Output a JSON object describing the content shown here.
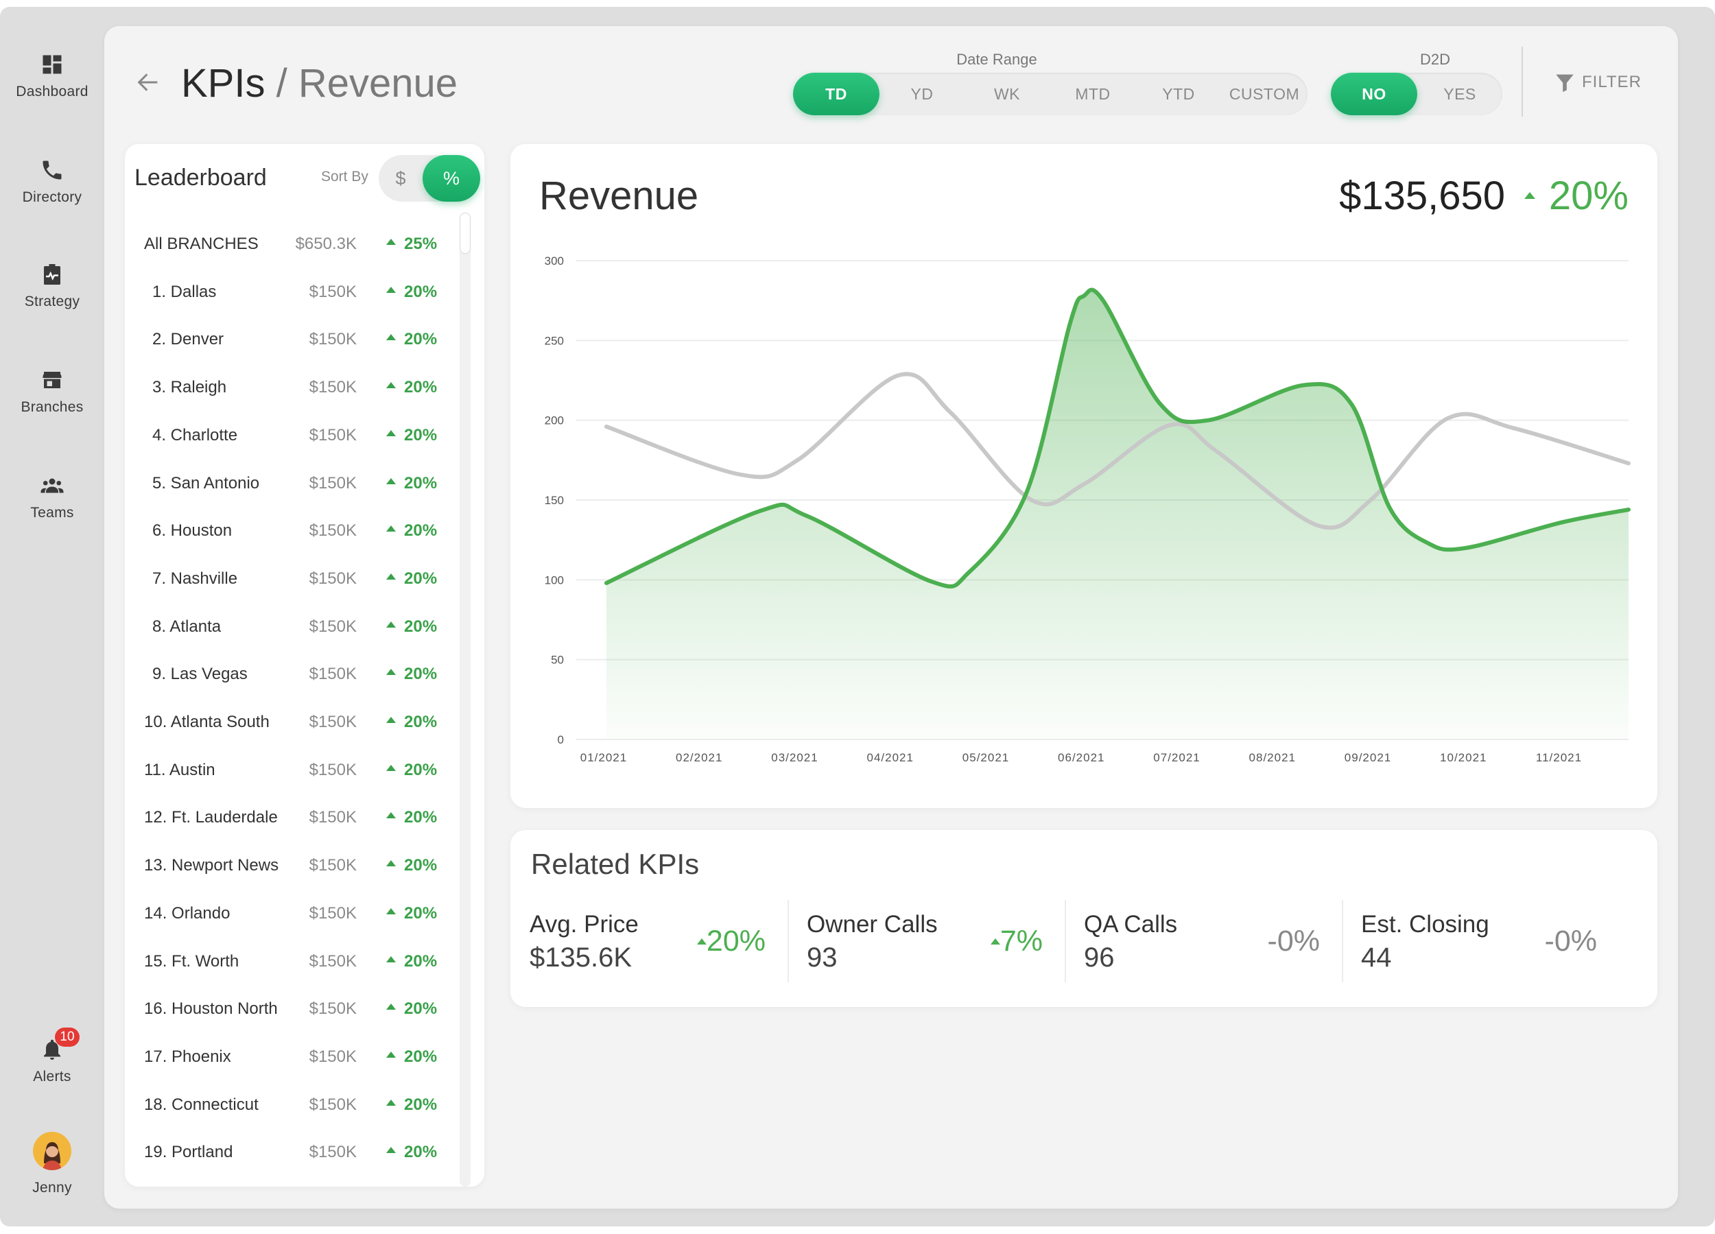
{
  "nav": {
    "items": [
      {
        "label": "Dashboard",
        "icon": "dashboard-icon"
      },
      {
        "label": "Directory",
        "icon": "phone-icon"
      },
      {
        "label": "Strategy",
        "icon": "clipboard-pulse-icon"
      },
      {
        "label": "Branches",
        "icon": "storefront-icon"
      },
      {
        "label": "Teams",
        "icon": "people-icon"
      }
    ],
    "alerts": {
      "label": "Alerts",
      "badge": "10",
      "icon": "bell-icon"
    },
    "user": {
      "name": "Jenny",
      "icon": "avatar"
    }
  },
  "header": {
    "title": "KPIs",
    "separator": "/",
    "subtitle": "Revenue",
    "date_range": {
      "label": "Date Range",
      "options": [
        "TD",
        "YD",
        "WK",
        "MTD",
        "YTD",
        "CUSTOM"
      ],
      "selected": "TD"
    },
    "d2d": {
      "label": "D2D",
      "options": [
        "NO",
        "YES"
      ],
      "selected": "NO"
    },
    "filter_label": "FILTER"
  },
  "leaderboard": {
    "title": "Leaderboard",
    "sort_by_label": "Sort By",
    "sort_options": [
      "$",
      "%"
    ],
    "sort_selected": "%",
    "rows": [
      {
        "name": "All BRANCHES",
        "value": "$650.3K",
        "change": "25%"
      },
      {
        "name": "1. Dallas",
        "value": "$150K",
        "change": "20%"
      },
      {
        "name": "2. Denver",
        "value": "$150K",
        "change": "20%"
      },
      {
        "name": "3. Raleigh",
        "value": "$150K",
        "change": "20%"
      },
      {
        "name": "4. Charlotte",
        "value": "$150K",
        "change": "20%"
      },
      {
        "name": "5. San Antonio",
        "value": "$150K",
        "change": "20%"
      },
      {
        "name": "6. Houston",
        "value": "$150K",
        "change": "20%"
      },
      {
        "name": "7. Nashville",
        "value": "$150K",
        "change": "20%"
      },
      {
        "name": "8. Atlanta",
        "value": "$150K",
        "change": "20%"
      },
      {
        "name": "9. Las Vegas",
        "value": "$150K",
        "change": "20%"
      },
      {
        "name": "10. Atlanta South",
        "value": "$150K",
        "change": "20%"
      },
      {
        "name": "11. Austin",
        "value": "$150K",
        "change": "20%"
      },
      {
        "name": "12. Ft. Lauderdale",
        "value": "$150K",
        "change": "20%"
      },
      {
        "name": "13. Newport News",
        "value": "$150K",
        "change": "20%"
      },
      {
        "name": "14. Orlando",
        "value": "$150K",
        "change": "20%"
      },
      {
        "name": "15. Ft. Worth",
        "value": "$150K",
        "change": "20%"
      },
      {
        "name": "16. Houston North",
        "value": "$150K",
        "change": "20%"
      },
      {
        "name": "17. Phoenix",
        "value": "$150K",
        "change": "20%"
      },
      {
        "name": "18. Connecticut",
        "value": "$150K",
        "change": "20%"
      },
      {
        "name": "19. Portland",
        "value": "$150K",
        "change": "20%"
      }
    ]
  },
  "revenue_card": {
    "title": "Revenue",
    "total": "$135,650",
    "change": "20%"
  },
  "chart_data": {
    "type": "line",
    "title": "Revenue",
    "xlabel": "",
    "ylabel": "",
    "ylim": [
      0,
      300
    ],
    "yticks": [
      "0",
      "50",
      "100",
      "150",
      "200",
      "250",
      "300"
    ],
    "x": [
      "01/2021",
      "02/2021",
      "03/2021",
      "04/2021",
      "05/2021",
      "06/2021",
      "07/2021",
      "08/2021",
      "09/2021",
      "10/2021",
      "11/2021"
    ],
    "grid": true,
    "series": [
      {
        "color": "#4caf50",
        "area": true,
        "points": [
          [
            0,
            98
          ],
          [
            1.6,
            143
          ],
          [
            2.1,
            140
          ],
          [
            3.4,
            99
          ],
          [
            3.8,
            105
          ],
          [
            4.4,
            155
          ],
          [
            4.85,
            260
          ],
          [
            5.0,
            278
          ],
          [
            5.2,
            275
          ],
          [
            5.8,
            210
          ],
          [
            6.3,
            200
          ],
          [
            7.3,
            222
          ],
          [
            7.8,
            210
          ],
          [
            8.2,
            145
          ],
          [
            8.6,
            123
          ],
          [
            9.0,
            120
          ],
          [
            10.0,
            136
          ],
          [
            10.7,
            144
          ]
        ]
      },
      {
        "color": "#c8c8c8",
        "area": false,
        "points": [
          [
            0,
            196
          ],
          [
            1.4,
            166
          ],
          [
            2.0,
            175
          ],
          [
            3.05,
            228
          ],
          [
            3.6,
            205
          ],
          [
            4.45,
            150
          ],
          [
            5.0,
            160
          ],
          [
            5.9,
            197
          ],
          [
            6.4,
            180
          ],
          [
            7.45,
            134
          ],
          [
            8.0,
            150
          ],
          [
            8.8,
            201
          ],
          [
            9.5,
            195
          ],
          [
            10.7,
            173
          ]
        ]
      }
    ]
  },
  "related_kpis": {
    "title": "Related KPIs",
    "items": [
      {
        "label": "Avg. Price",
        "value": "$135.6K",
        "change": "20%",
        "trend": "up"
      },
      {
        "label": "Owner Calls",
        "value": "93",
        "change": "7%",
        "trend": "up"
      },
      {
        "label": "QA Calls",
        "value": "96",
        "change": "-0%",
        "trend": "neutral"
      },
      {
        "label": "Est. Closing",
        "value": "44",
        "change": "-0%",
        "trend": "neutral"
      }
    ]
  }
}
